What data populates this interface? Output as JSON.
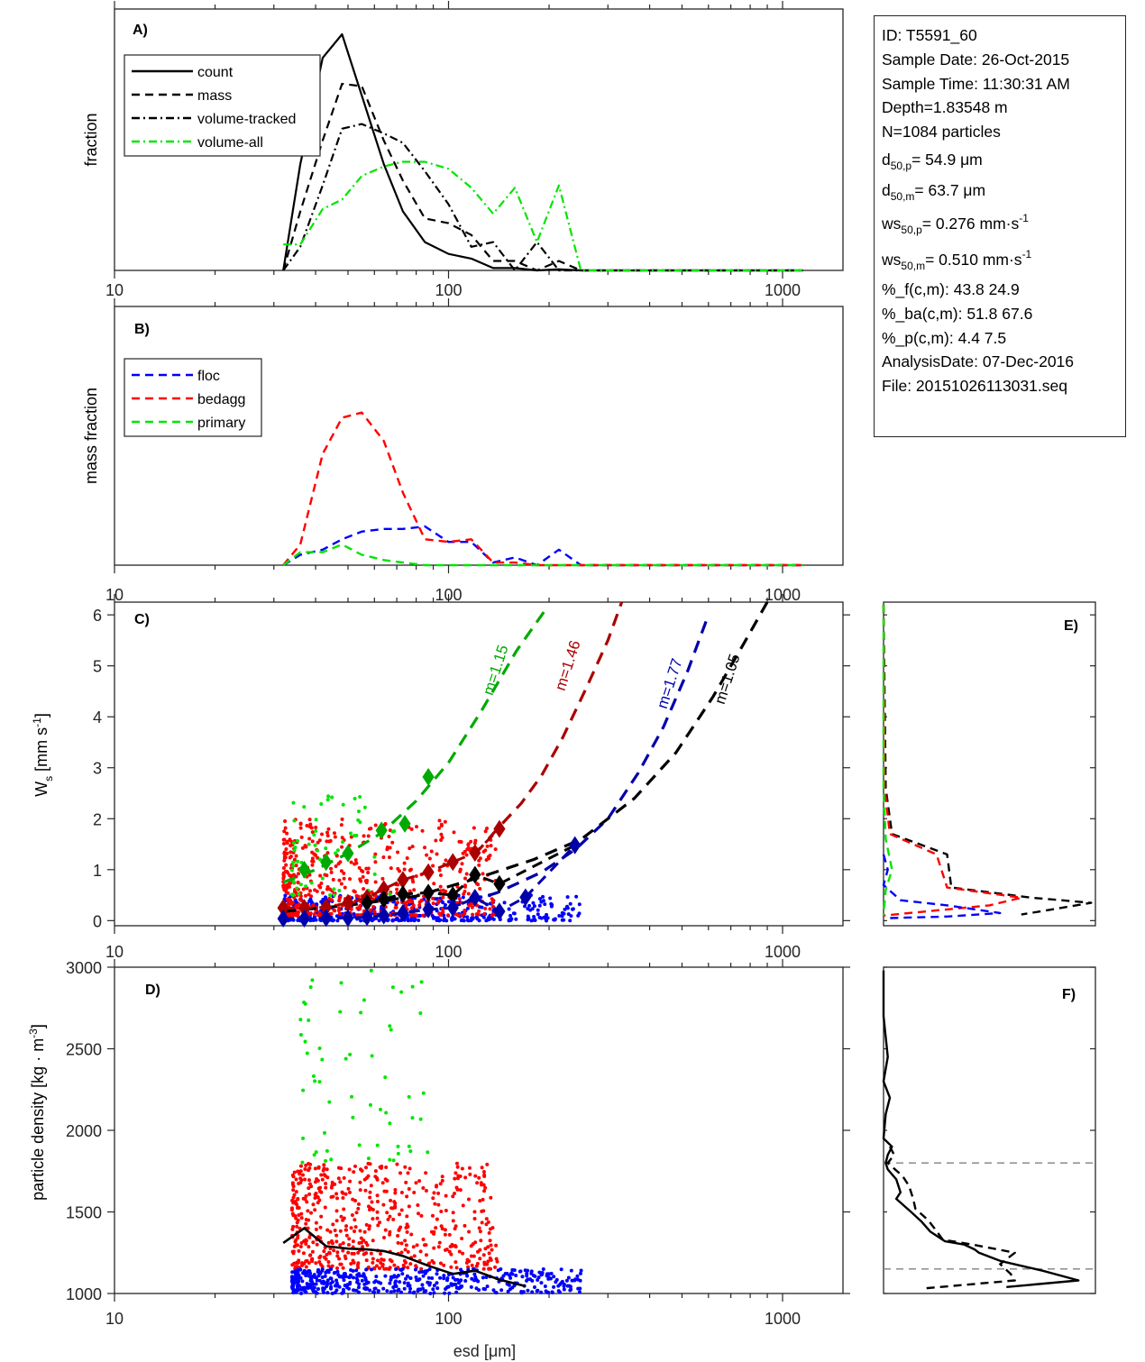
{
  "info_box": {
    "id": "ID: T5591_60",
    "sample_date": "Sample Date: 26-Oct-2015",
    "sample_time": "Sample Time: 11:30:31 AM",
    "depth": "Depth=1.83548 m",
    "n": "N=1084 particles",
    "d50p": {
      "base": "d",
      "sub": "50,p",
      "rest": "=  54.9 μm"
    },
    "d50m": {
      "base": "d",
      "sub": "50,m",
      "rest": "=  63.7 μm"
    },
    "ws50p": {
      "base": "ws",
      "sub": "50,p",
      "rest": "= 0.276 mm·s",
      "sup": "-1"
    },
    "ws50m": {
      "base": "ws",
      "sub": "50,m",
      "rest": "= 0.510 mm·s",
      "sup": "-1"
    },
    "pct_f": "%_f(c,m): 43.8 24.9",
    "pct_ba": "%_ba(c,m): 51.8 67.6",
    "pct_p": "%_p(c,m): 4.4 7.5",
    "analysis_date": "AnalysisDate: 07-Dec-2016",
    "file": "File: 20151026113031.seq"
  },
  "chart_data": [
    {
      "panel": "A)",
      "type": "line",
      "xscale": "log",
      "xlim": [
        10,
        1500
      ],
      "xticks": [
        10,
        100,
        1000
      ],
      "xtick_labels": [
        "10",
        "100",
        "1000"
      ],
      "ylabel": "fraction",
      "ylim": [
        0,
        1
      ],
      "legend": "top-left",
      "x": [
        32,
        36,
        42,
        48,
        55,
        64,
        73,
        85,
        100,
        117,
        136,
        158,
        184,
        214,
        249,
        290,
        338,
        394,
        459,
        535,
        624,
        727,
        848,
        988,
        1150
      ],
      "series": [
        {
          "name": "count",
          "style": "solid",
          "color": "#000000",
          "values": [
            0.0,
            0.45,
            0.9,
            1.0,
            0.74,
            0.45,
            0.25,
            0.12,
            0.07,
            0.05,
            0.01,
            0.01,
            0.0,
            0.005,
            0.0,
            0.0,
            0,
            0,
            0,
            0,
            0,
            0,
            0,
            0,
            0
          ]
        },
        {
          "name": "mass",
          "style": "dashed",
          "color": "#000000",
          "values": [
            0.0,
            0.25,
            0.55,
            0.79,
            0.78,
            0.55,
            0.38,
            0.22,
            0.2,
            0.15,
            0.04,
            0.04,
            0.0,
            0.04,
            0.0,
            0.0,
            0,
            0,
            0,
            0,
            0,
            0,
            0,
            0,
            0
          ]
        },
        {
          "name": "volume-tracked",
          "style": "dashdot",
          "color": "#000000",
          "values": [
            0.0,
            0.1,
            0.36,
            0.6,
            0.62,
            0.58,
            0.54,
            0.42,
            0.28,
            0.1,
            0.12,
            0.0,
            0.12,
            0.0,
            0.0,
            0.0,
            0,
            0,
            0,
            0,
            0,
            0,
            0,
            0,
            0
          ]
        },
        {
          "name": "volume-all",
          "style": "dashdot",
          "color": "#00e600",
          "values": [
            0.11,
            0.11,
            0.26,
            0.3,
            0.4,
            0.44,
            0.46,
            0.46,
            0.43,
            0.35,
            0.24,
            0.35,
            0.12,
            0.36,
            0.0,
            0.0,
            0,
            0,
            0,
            0,
            0,
            0,
            0,
            0,
            0
          ]
        }
      ]
    },
    {
      "panel": "B)",
      "type": "line",
      "xscale": "log",
      "xlim": [
        10,
        1500
      ],
      "xticks": [
        10,
        100,
        1000
      ],
      "xtick_labels": [
        "10",
        "100",
        "1000"
      ],
      "ylabel": "mass fraction",
      "ylim": [
        0,
        1
      ],
      "legend": "top-left",
      "x": [
        32,
        36,
        42,
        48,
        55,
        64,
        73,
        85,
        100,
        117,
        136,
        158,
        184,
        214,
        249,
        290,
        338,
        394,
        459,
        535,
        624,
        727,
        848,
        988,
        1150
      ],
      "series": [
        {
          "name": "floc",
          "style": "dashed",
          "color": "#0000ff",
          "values": [
            0.0,
            0.04,
            0.06,
            0.1,
            0.13,
            0.14,
            0.14,
            0.15,
            0.09,
            0.09,
            0.01,
            0.03,
            0.0,
            0.06,
            0.0,
            0.0,
            0,
            0,
            0,
            0,
            0,
            0,
            0,
            0,
            0
          ]
        },
        {
          "name": "bedagg",
          "style": "dashed",
          "color": "#ff0000",
          "values": [
            0.0,
            0.08,
            0.43,
            0.57,
            0.59,
            0.48,
            0.28,
            0.1,
            0.09,
            0.1,
            0.01,
            0.01,
            0.0,
            0.0,
            0.0,
            0.0,
            0,
            0,
            0,
            0,
            0,
            0,
            0,
            0,
            0
          ]
        },
        {
          "name": "primary",
          "style": "dashed",
          "color": "#00e600",
          "values": [
            0.0,
            0.05,
            0.05,
            0.08,
            0.04,
            0.02,
            0.01,
            0.0,
            0.0,
            0.0,
            0.0,
            0.0,
            0.0,
            0.0,
            0.0,
            0.0,
            0,
            0,
            0,
            0,
            0,
            0,
            0,
            0,
            0
          ]
        }
      ]
    },
    {
      "panel": "C)",
      "type": "scatter",
      "xscale": "log",
      "xlim": [
        10,
        1500
      ],
      "xticks": [
        10,
        100,
        1000
      ],
      "xtick_labels": [
        "10",
        "100",
        "1000"
      ],
      "ylabel": "W_s [mm s^-1]",
      "ylim": [
        -0.1,
        6.25
      ],
      "yticks": [
        0,
        1,
        2,
        3,
        4,
        5,
        6
      ],
      "ytick_labels": [
        "0",
        "1",
        "2",
        "3",
        "4",
        "5",
        "6"
      ],
      "scatter_groups": [
        {
          "name": "primary",
          "color": "#00e600",
          "x_range": [
            34,
            70
          ],
          "y_range": [
            0.5,
            2.45
          ],
          "count": 60
        },
        {
          "name": "bedagg",
          "color": "#ff0000",
          "x_range": [
            32,
            140
          ],
          "y_range": [
            0.1,
            2.0
          ],
          "count": 560
        },
        {
          "name": "floc",
          "color": "#0000ff",
          "x_range": [
            32,
            250
          ],
          "y_range": [
            0.0,
            0.5
          ],
          "count": 460
        }
      ],
      "binned_means": [
        {
          "name": "primary",
          "color": "#00aa00",
          "x": [
            37,
            43,
            50,
            63,
            74,
            87
          ],
          "y": [
            1.0,
            1.15,
            1.32,
            1.77,
            1.9,
            2.82
          ]
        },
        {
          "name": "bedagg",
          "color": "#aa0000",
          "x": [
            32,
            37,
            43,
            50,
            57,
            64,
            73,
            87,
            103,
            120,
            142
          ],
          "y": [
            0.25,
            0.25,
            0.26,
            0.35,
            0.45,
            0.62,
            0.8,
            0.95,
            1.15,
            1.33,
            1.8
          ]
        },
        {
          "name": "all",
          "color": "#000000",
          "x": [
            57,
            64,
            73,
            87,
            103,
            120,
            142,
            239
          ],
          "y": [
            0.35,
            0.42,
            0.52,
            0.55,
            0.5,
            0.9,
            0.72,
            1.48
          ]
        },
        {
          "name": "floc",
          "color": "#0000aa",
          "x": [
            32,
            37,
            43,
            50,
            57,
            64,
            73,
            87,
            103,
            120,
            142,
            170,
            239
          ],
          "y": [
            0.04,
            0.04,
            0.05,
            0.05,
            0.07,
            0.1,
            0.15,
            0.22,
            0.25,
            0.45,
            0.18,
            0.46,
            1.48
          ]
        }
      ],
      "fit_curves": [
        {
          "label": "m=1.15",
          "color": "#00aa00",
          "x": [
            32,
            40,
            50,
            63,
            80,
            100,
            125,
            160,
            195
          ],
          "y": [
            0.75,
            1.0,
            1.32,
            1.72,
            2.35,
            3.1,
            4.1,
            5.3,
            6.1
          ]
        },
        {
          "label": "m=1.46",
          "color": "#aa0000",
          "x": [
            120,
            140,
            165,
            190,
            220,
            260,
            300,
            330
          ],
          "y": [
            1.3,
            1.8,
            2.3,
            2.85,
            3.6,
            4.6,
            5.5,
            6.25
          ]
        },
        {
          "label": "m=1.77",
          "color": "#0000aa",
          "x": [
            100,
            140,
            190,
            240,
            300,
            370,
            440,
            520,
            600
          ],
          "y": [
            0.25,
            0.55,
            0.95,
            1.4,
            2.0,
            2.9,
            3.8,
            4.9,
            6.0
          ]
        },
        {
          "label": "m=1.05",
          "color": "#000000",
          "x": [
            32,
            50,
            80,
            120,
            180,
            250,
            360,
            480,
            620,
            760,
            900
          ],
          "y": [
            0.18,
            0.3,
            0.48,
            0.82,
            1.2,
            1.6,
            2.4,
            3.3,
            4.4,
            5.4,
            6.25
          ]
        }
      ]
    },
    {
      "panel": "D)",
      "type": "scatter",
      "xscale": "log",
      "xlim": [
        10,
        1500
      ],
      "xticks": [
        10,
        100,
        1000
      ],
      "xtick_labels": [
        "10",
        "100",
        "1000"
      ],
      "xlabel": "esd [μm]",
      "ylabel": "particle density [kg · m^-3]",
      "ylim": [
        1000,
        3000
      ],
      "yticks": [
        1000,
        1500,
        2000,
        2500,
        3000
      ],
      "ytick_labels": [
        "1000",
        "1500",
        "2000",
        "2500",
        "3000"
      ],
      "scatter_groups": [
        {
          "name": "primary",
          "color": "#00e600",
          "x_range": [
            36,
            88
          ],
          "y_range": [
            1800,
            2980
          ],
          "count": 60
        },
        {
          "name": "bedagg",
          "color": "#ff0000",
          "x_range": [
            34,
            140
          ],
          "y_range": [
            1150,
            1800
          ],
          "count": 560
        },
        {
          "name": "floc",
          "color": "#0000ff",
          "x_range": [
            34,
            250
          ],
          "y_range": [
            1000,
            1150
          ],
          "count": 460
        }
      ],
      "mean_line": {
        "name": "mean density",
        "color": "#000000",
        "x": [
          32,
          37,
          43,
          50,
          57,
          64,
          73,
          87,
          103,
          120,
          142,
          170
        ],
        "y": [
          1310,
          1400,
          1290,
          1275,
          1270,
          1260,
          1230,
          1170,
          1120,
          1140,
          1085,
          1045
        ]
      }
    },
    {
      "panel": "E)",
      "type": "line",
      "orientation": "horizontal-profile",
      "ylim": [
        -0.1,
        6.25
      ],
      "xlim": [
        0,
        1
      ],
      "series": [
        {
          "name": "all",
          "color": "#000000",
          "style": "dashed",
          "y": [
            6.2,
            2.6,
            1.7,
            1.3,
            0.65,
            0.45,
            0.35,
            0.12
          ],
          "values": [
            0.0,
            0.01,
            0.04,
            0.3,
            0.32,
            0.7,
            0.98,
            0.65
          ]
        },
        {
          "name": "bedagg",
          "color": "#ff0000",
          "style": "dashed",
          "y": [
            6.2,
            2.6,
            1.7,
            1.3,
            0.65,
            0.45,
            0.3,
            0.1
          ],
          "values": [
            0.0,
            0.005,
            0.03,
            0.25,
            0.3,
            0.65,
            0.5,
            0.0
          ]
        },
        {
          "name": "floc",
          "color": "#0000ff",
          "style": "dashed",
          "y": [
            1.3,
            1.0,
            0.7,
            0.4,
            0.3,
            0.15,
            0.08,
            0.05
          ],
          "values": [
            0.0,
            0.02,
            0.0,
            0.08,
            0.3,
            0.55,
            0.3,
            0.03
          ]
        },
        {
          "name": "primary",
          "color": "#00e600",
          "style": "dashed",
          "y": [
            6.2,
            2.6,
            1.6,
            1.0,
            0.6,
            0.1
          ],
          "values": [
            0.0,
            0.0,
            0.01,
            0.04,
            0.01,
            0.0
          ]
        }
      ]
    },
    {
      "panel": "F)",
      "type": "line",
      "orientation": "horizontal-profile",
      "ylim": [
        1000,
        3000
      ],
      "xlim": [
        0,
        1
      ],
      "reference_lines": {
        "color": "#808080",
        "style": "dashed",
        "y": [
          1150,
          1800
        ]
      },
      "series": [
        {
          "name": "count",
          "color": "#000000",
          "style": "solid",
          "y": [
            2980,
            2700,
            2450,
            2300,
            2200,
            2100,
            1950,
            1900,
            1850,
            1800,
            1760,
            1700,
            1620,
            1580,
            1500,
            1440,
            1380,
            1320,
            1300,
            1270,
            1250,
            1200,
            1140,
            1080,
            1040
          ],
          "values": [
            0.0,
            0.0,
            0.02,
            0.0,
            0.03,
            0.01,
            0.0,
            0.04,
            0.02,
            0.01,
            0.02,
            0.06,
            0.08,
            0.06,
            0.13,
            0.18,
            0.22,
            0.29,
            0.38,
            0.43,
            0.45,
            0.55,
            0.75,
            0.92,
            0.58
          ]
        },
        {
          "name": "mass",
          "color": "#000000",
          "style": "dashed",
          "y": [
            1900,
            1850,
            1800,
            1720,
            1660,
            1580,
            1520,
            1450,
            1400,
            1330,
            1300,
            1250,
            1180,
            1120,
            1080,
            1030
          ],
          "values": [
            0.03,
            0.05,
            0.02,
            0.09,
            0.12,
            0.14,
            0.15,
            0.21,
            0.24,
            0.28,
            0.42,
            0.62,
            0.55,
            0.6,
            0.62,
            0.18
          ]
        }
      ]
    }
  ]
}
